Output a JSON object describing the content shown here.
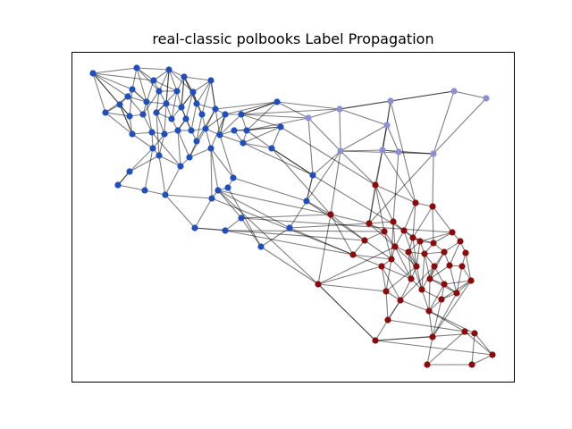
{
  "title": "real-classic polbooks Label Propagation",
  "colors": {
    "community_blue": "#1f4fbf",
    "community_lavender": "#8d8fd6",
    "community_darkred": "#8b0a0a",
    "edge": "#000000"
  },
  "graph": {
    "communities": [
      {
        "id": "blue",
        "color": "#1f4fbf"
      },
      {
        "id": "lavender",
        "color": "#8d8fd6"
      },
      {
        "id": "darkred",
        "color": "#8b0a0a"
      }
    ]
  }
}
